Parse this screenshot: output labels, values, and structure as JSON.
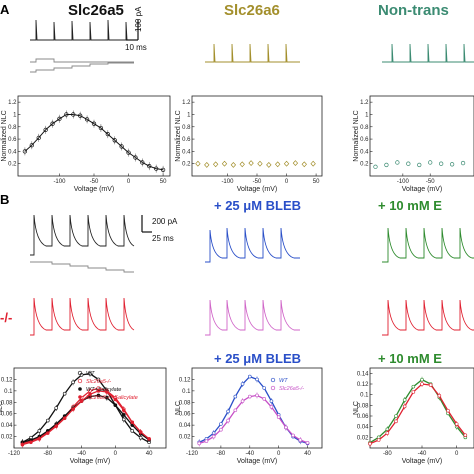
{
  "panels": {
    "a": "A",
    "b": "B"
  },
  "headers": {
    "slc26a5": "Slc26a5",
    "slc26a6": "Slc26a6",
    "nontrans": "Non-trans",
    "bleb": "+ 25 μM BLEB",
    "bleb_bottom": "+ 25 μM BLEB",
    "eb_top": "+ 10 mM E",
    "eb_bottom": "+ 10 mM E"
  },
  "row_label_ko": "-/-",
  "scales": {
    "a_current": "100 pA",
    "a_time": "10 ms",
    "b_current": "200 pA",
    "b_time": "25 ms"
  },
  "axes": {
    "voltage": "Voltage (mV)",
    "normalized_nlc": "Normalized NLC",
    "nlc": "NLC"
  },
  "legend_b1": [
    "WT",
    "Slc26a5-/-",
    "WT+Salicylate",
    "Slc26a5-/-+Salicylate"
  ],
  "legend_b2": [
    "WT",
    "Slc26a5-/-"
  ],
  "colors": {
    "slc26a6": "#a38f2c",
    "nontrans": "#3b8b72",
    "blue": "#2a4fc8",
    "magenta": "#c64fc6",
    "green": "#2e8b2e",
    "red": "#e02030",
    "black": "#111111"
  },
  "chart_data": [
    {
      "id": "A1",
      "type": "scatter",
      "x": [
        -150,
        -140,
        -130,
        -120,
        -110,
        -100,
        -90,
        -80,
        -70,
        -60,
        -50,
        -40,
        -30,
        -20,
        -10,
        0,
        10,
        20,
        30,
        40,
        50
      ],
      "y": [
        0.4,
        0.5,
        0.62,
        0.75,
        0.85,
        0.93,
        1.0,
        1.0,
        0.98,
        0.92,
        0.85,
        0.78,
        0.68,
        0.58,
        0.48,
        0.38,
        0.3,
        0.22,
        0.16,
        0.12,
        0.1
      ],
      "fit": true,
      "xlabel": "Voltage (mV)",
      "ylabel": "Normalized NLC",
      "xticks": [
        -100,
        -50,
        0,
        50
      ],
      "yticks": [
        0.2,
        0.4,
        0.6,
        0.8,
        1.0,
        1.2
      ],
      "xlim": [
        -160,
        60
      ],
      "ylim": [
        0,
        1.3
      ]
    },
    {
      "id": "A2",
      "type": "scatter",
      "x": [
        -150,
        -135,
        -120,
        -105,
        -90,
        -75,
        -60,
        -45,
        -30,
        -15,
        0,
        15,
        30,
        45
      ],
      "y": [
        0.2,
        0.18,
        0.19,
        0.2,
        0.18,
        0.19,
        0.21,
        0.2,
        0.18,
        0.19,
        0.2,
        0.21,
        0.19,
        0.2
      ],
      "xlabel": "Voltage (mV)",
      "ylabel": "Normalized NLC",
      "xticks": [
        -100,
        -50,
        0,
        50
      ],
      "yticks": [
        0.2,
        0.4,
        0.6,
        0.8,
        1.0,
        1.2
      ],
      "xlim": [
        -160,
        60
      ],
      "ylim": [
        0,
        1.3
      ]
    },
    {
      "id": "A3",
      "type": "scatter",
      "x": [
        -150,
        -130,
        -110,
        -90,
        -70,
        -50,
        -30,
        -10,
        10
      ],
      "y": [
        0.15,
        0.18,
        0.22,
        0.2,
        0.18,
        0.22,
        0.2,
        0.19,
        0.21
      ],
      "xlabel": "Voltage (mV)",
      "ylabel": "Normalized NLC",
      "xticks": [
        -100,
        -50
      ],
      "yticks": [
        0.2,
        0.4,
        0.6,
        0.8,
        1.0,
        1.2
      ],
      "xlim": [
        -160,
        30
      ],
      "ylim": [
        0,
        1.3
      ]
    },
    {
      "id": "B1",
      "type": "line",
      "xlabel": "Voltage (mV)",
      "ylabel": "NLC",
      "xticks": [
        -120,
        -80,
        -40,
        0,
        40
      ],
      "yticks": [
        0.02,
        0.04,
        0.06,
        0.08,
        0.1,
        0.12
      ],
      "xlim": [
        -120,
        60
      ],
      "ylim": [
        0,
        0.14
      ],
      "x": [
        -110,
        -100,
        -90,
        -80,
        -70,
        -60,
        -50,
        -40,
        -30,
        -20,
        -10,
        0,
        10,
        20,
        30,
        40
      ],
      "series": [
        {
          "name": "WT",
          "color": "#111111",
          "values": [
            0.01,
            0.018,
            0.03,
            0.048,
            0.07,
            0.095,
            0.115,
            0.128,
            0.13,
            0.12,
            0.1,
            0.075,
            0.05,
            0.03,
            0.018,
            0.01
          ]
        },
        {
          "name": "Slc26a5-/-",
          "color": "#e02030",
          "values": [
            0.008,
            0.012,
            0.018,
            0.028,
            0.04,
            0.055,
            0.072,
            0.088,
            0.1,
            0.105,
            0.1,
            0.088,
            0.068,
            0.045,
            0.028,
            0.015
          ]
        },
        {
          "name": "WT+Salicylate",
          "color": "#111111",
          "values": [
            0.01,
            0.014,
            0.02,
            0.03,
            0.042,
            0.056,
            0.07,
            0.082,
            0.09,
            0.092,
            0.088,
            0.075,
            0.058,
            0.04,
            0.025,
            0.014
          ]
        },
        {
          "name": "Slc26a5-/-+Salicylate",
          "color": "#e02030",
          "values": [
            0.006,
            0.01,
            0.016,
            0.026,
            0.038,
            0.052,
            0.068,
            0.082,
            0.094,
            0.1,
            0.098,
            0.085,
            0.066,
            0.045,
            0.028,
            0.016
          ]
        }
      ]
    },
    {
      "id": "B2",
      "type": "line",
      "xlabel": "Voltage (mV)",
      "ylabel": "NLC",
      "xticks": [
        -120,
        -80,
        -40,
        0,
        40
      ],
      "yticks": [
        0.02,
        0.04,
        0.06,
        0.08,
        0.1,
        0.12
      ],
      "xlim": [
        -120,
        60
      ],
      "ylim": [
        0,
        0.14
      ],
      "x": [
        -110,
        -100,
        -90,
        -80,
        -70,
        -60,
        -50,
        -40,
        -30,
        -20,
        -10,
        0,
        10,
        20,
        30,
        40
      ],
      "series": [
        {
          "name": "WT",
          "color": "#2a4fc8",
          "values": [
            0.01,
            0.016,
            0.026,
            0.042,
            0.064,
            0.09,
            0.112,
            0.125,
            0.12,
            0.105,
            0.082,
            0.058,
            0.036,
            0.02,
            0.012,
            0.008
          ]
        },
        {
          "name": "Slc26a5-/-",
          "color": "#c64fc6",
          "values": [
            0.008,
            0.012,
            0.02,
            0.032,
            0.048,
            0.066,
            0.082,
            0.09,
            0.092,
            0.086,
            0.072,
            0.054,
            0.036,
            0.022,
            0.014,
            0.009
          ]
        }
      ]
    },
    {
      "id": "B3",
      "type": "line",
      "xlabel": "Voltage (mV)",
      "ylabel": "NLC",
      "xticks": [
        -80,
        -40,
        0
      ],
      "yticks": [
        0.02,
        0.04,
        0.06,
        0.08,
        0.1,
        0.12,
        0.14
      ],
      "xlim": [
        -100,
        20
      ],
      "ylim": [
        0,
        0.15
      ],
      "x": [
        -100,
        -90,
        -80,
        -70,
        -60,
        -50,
        -40,
        -30,
        -20,
        -10,
        0,
        10
      ],
      "series": [
        {
          "name": "WT",
          "color": "#2e8b2e",
          "values": [
            0.01,
            0.02,
            0.035,
            0.06,
            0.09,
            0.115,
            0.128,
            0.12,
            0.095,
            0.065,
            0.04,
            0.02
          ]
        },
        {
          "name": "Slc26a5-/-",
          "color": "#e02030",
          "values": [
            0.008,
            0.015,
            0.028,
            0.05,
            0.078,
            0.105,
            0.12,
            0.118,
            0.098,
            0.07,
            0.045,
            0.024
          ]
        }
      ]
    }
  ]
}
